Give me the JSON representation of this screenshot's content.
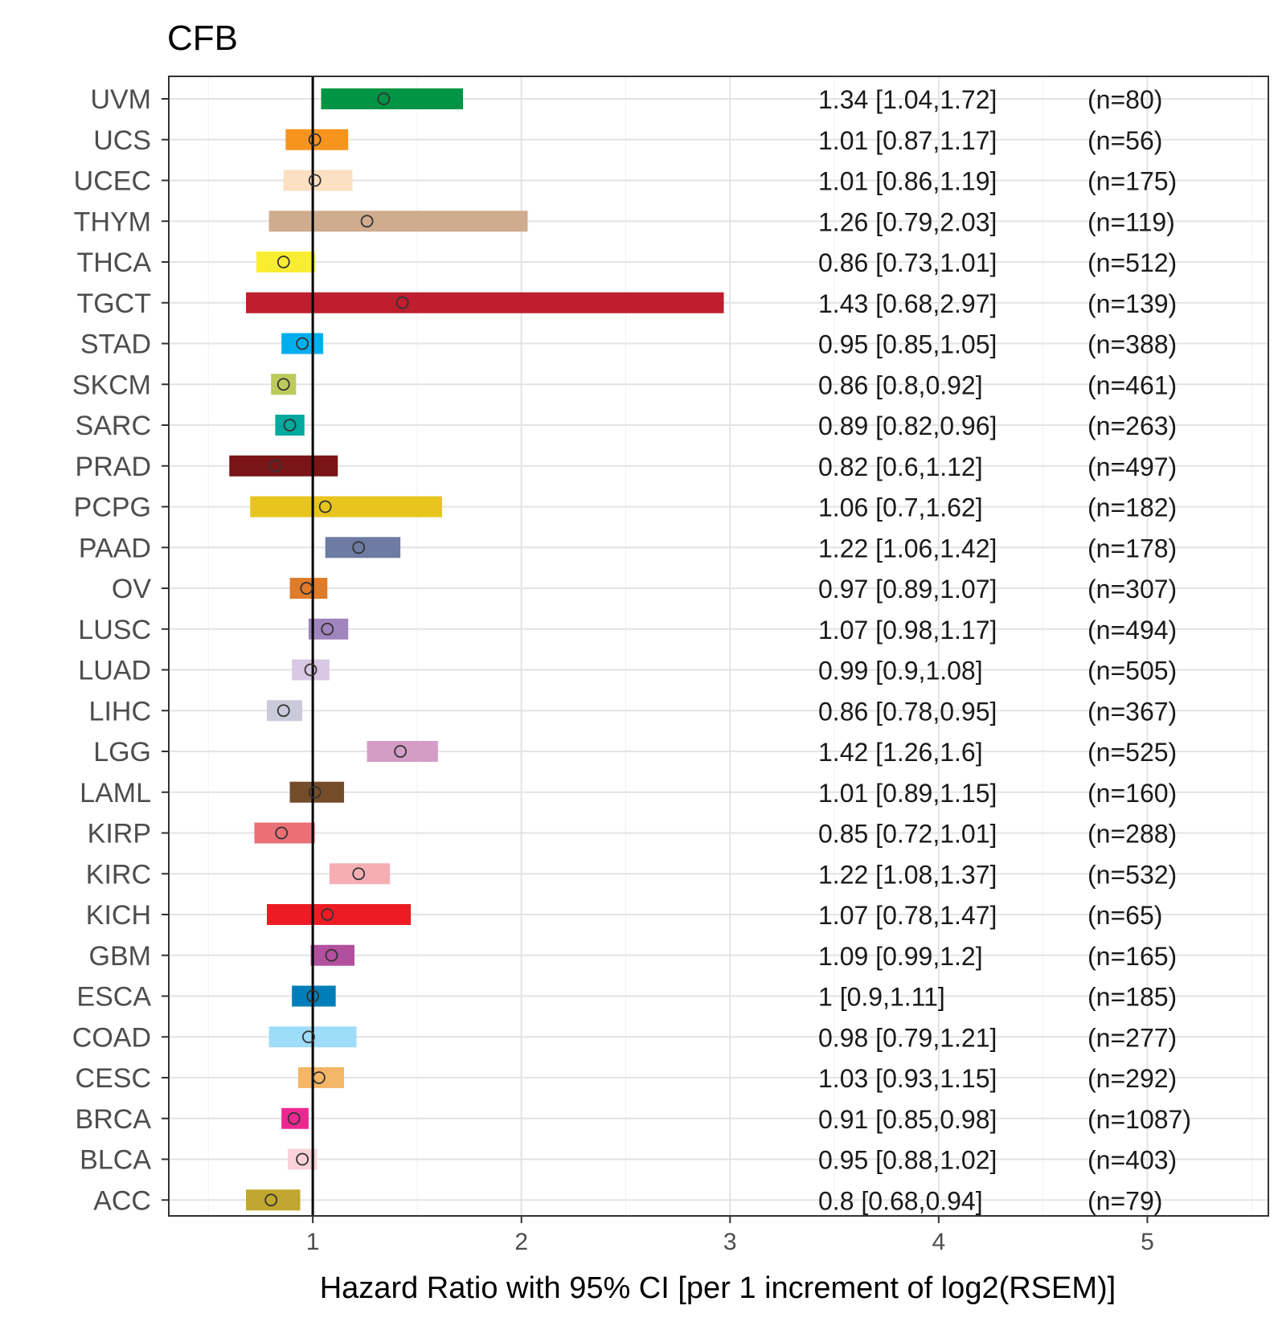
{
  "chart_data": {
    "type": "forest",
    "title": "CFB",
    "xlabel": "Hazard Ratio with 95% CI [per 1 increment of log2(RSEM)]",
    "xlim": [
      0.31,
      5.58
    ],
    "xticks": [
      1,
      2,
      3,
      4,
      5
    ],
    "reference_line": 1,
    "grid": true,
    "rows": [
      {
        "label": "UVM",
        "hr": 1.34,
        "lo": 1.04,
        "hi": 1.72,
        "text": "1.34 [1.04,1.72]",
        "n": "(n=80)",
        "color": "#009444"
      },
      {
        "label": "UCS",
        "hr": 1.01,
        "lo": 0.87,
        "hi": 1.17,
        "text": "1.01 [0.87,1.17]",
        "n": "(n=56)",
        "color": "#F7941D"
      },
      {
        "label": "UCEC",
        "hr": 1.01,
        "lo": 0.86,
        "hi": 1.19,
        "text": "1.01 [0.86,1.19]",
        "n": "(n=175)",
        "color": "#FDDFC2"
      },
      {
        "label": "THYM",
        "hr": 1.26,
        "lo": 0.79,
        "hi": 2.03,
        "text": "1.26 [0.79,2.03]",
        "n": "(n=119)",
        "color": "#CFAC8D"
      },
      {
        "label": "THCA",
        "hr": 0.86,
        "lo": 0.73,
        "hi": 1.01,
        "text": "0.86 [0.73,1.01]",
        "n": "(n=512)",
        "color": "#F9ED32"
      },
      {
        "label": "TGCT",
        "hr": 1.43,
        "lo": 0.68,
        "hi": 2.97,
        "text": "1.43 [0.68,2.97]",
        "n": "(n=139)",
        "color": "#BE1E2D"
      },
      {
        "label": "STAD",
        "hr": 0.95,
        "lo": 0.85,
        "hi": 1.05,
        "text": "0.95 [0.85,1.05]",
        "n": "(n=388)",
        "color": "#00AEEF"
      },
      {
        "label": "SKCM",
        "hr": 0.86,
        "lo": 0.8,
        "hi": 0.92,
        "text": "0.86 [0.8,0.92]",
        "n": "(n=461)",
        "color": "#BBCB5A"
      },
      {
        "label": "SARC",
        "hr": 0.89,
        "lo": 0.82,
        "hi": 0.96,
        "text": "0.89 [0.82,0.96]",
        "n": "(n=263)",
        "color": "#00A99D"
      },
      {
        "label": "PRAD",
        "hr": 0.82,
        "lo": 0.6,
        "hi": 1.12,
        "text": "0.82 [0.6,1.12]",
        "n": "(n=497)",
        "color": "#7A1416"
      },
      {
        "label": "PCPG",
        "hr": 1.06,
        "lo": 0.7,
        "hi": 1.62,
        "text": "1.06 [0.7,1.62]",
        "n": "(n=182)",
        "color": "#E8C51D"
      },
      {
        "label": "PAAD",
        "hr": 1.22,
        "lo": 1.06,
        "hi": 1.42,
        "text": "1.22 [1.06,1.42]",
        "n": "(n=178)",
        "color": "#6E7BA2"
      },
      {
        "label": "OV",
        "hr": 0.97,
        "lo": 0.89,
        "hi": 1.07,
        "text": "0.97 [0.89,1.07]",
        "n": "(n=307)",
        "color": "#E07B2A"
      },
      {
        "label": "LUSC",
        "hr": 1.07,
        "lo": 0.98,
        "hi": 1.17,
        "text": "1.07 [0.98,1.17]",
        "n": "(n=494)",
        "color": "#A084BD"
      },
      {
        "label": "LUAD",
        "hr": 0.99,
        "lo": 0.9,
        "hi": 1.08,
        "text": "0.99 [0.9,1.08]",
        "n": "(n=505)",
        "color": "#D9C8E3"
      },
      {
        "label": "LIHC",
        "hr": 0.86,
        "lo": 0.78,
        "hi": 0.95,
        "text": "0.86 [0.78,0.95]",
        "n": "(n=367)",
        "color": "#CACADB"
      },
      {
        "label": "LGG",
        "hr": 1.42,
        "lo": 1.26,
        "hi": 1.6,
        "text": "1.42 [1.26,1.6]",
        "n": "(n=525)",
        "color": "#D49DC6"
      },
      {
        "label": "LAML",
        "hr": 1.01,
        "lo": 0.89,
        "hi": 1.15,
        "text": "1.01 [0.89,1.15]",
        "n": "(n=160)",
        "color": "#754C29"
      },
      {
        "label": "KIRP",
        "hr": 0.85,
        "lo": 0.72,
        "hi": 1.01,
        "text": "0.85 [0.72,1.01]",
        "n": "(n=288)",
        "color": "#EA7075"
      },
      {
        "label": "KIRC",
        "hr": 1.22,
        "lo": 1.08,
        "hi": 1.37,
        "text": "1.22 [1.08,1.37]",
        "n": "(n=532)",
        "color": "#F5AFB4"
      },
      {
        "label": "KICH",
        "hr": 1.07,
        "lo": 0.78,
        "hi": 1.47,
        "text": "1.07 [0.78,1.47]",
        "n": "(n=65)",
        "color": "#ED1C24"
      },
      {
        "label": "GBM",
        "hr": 1.09,
        "lo": 0.99,
        "hi": 1.2,
        "text": "1.09 [0.99,1.2]",
        "n": "(n=165)",
        "color": "#B2509E"
      },
      {
        "label": "ESCA",
        "hr": 1,
        "lo": 0.9,
        "hi": 1.11,
        "text": "1 [0.9,1.11]",
        "n": "(n=185)",
        "color": "#007EB9"
      },
      {
        "label": "COAD",
        "hr": 0.98,
        "lo": 0.79,
        "hi": 1.21,
        "text": "0.98 [0.79,1.21]",
        "n": "(n=277)",
        "color": "#9EDDF9"
      },
      {
        "label": "CESC",
        "hr": 1.03,
        "lo": 0.93,
        "hi": 1.15,
        "text": "1.03 [0.93,1.15]",
        "n": "(n=292)",
        "color": "#F6B667"
      },
      {
        "label": "BRCA",
        "hr": 0.91,
        "lo": 0.85,
        "hi": 0.98,
        "text": "0.91 [0.85,0.98]",
        "n": "(n=1087)",
        "color": "#ED2891"
      },
      {
        "label": "BLCA",
        "hr": 0.95,
        "lo": 0.88,
        "hi": 1.02,
        "text": "0.95 [0.88,1.02]",
        "n": "(n=403)",
        "color": "#FAD2D9"
      },
      {
        "label": "ACC",
        "hr": 0.8,
        "lo": 0.68,
        "hi": 0.94,
        "text": "0.8 [0.68,0.94]",
        "n": "(n=79)",
        "color": "#C1A72F"
      }
    ]
  }
}
